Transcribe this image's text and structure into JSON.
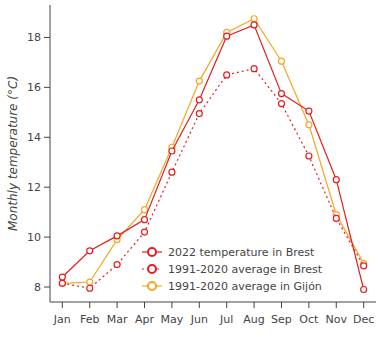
{
  "chart_data": {
    "type": "line",
    "y_label": "Monthly temperature (°C)",
    "categories": [
      "Jan",
      "Feb",
      "Mar",
      "Apr",
      "May",
      "Jun",
      "Jul",
      "Aug",
      "Sep",
      "Oct",
      "Nov",
      "Dec"
    ],
    "series": [
      {
        "name": "2022 temperature in Brest",
        "color": "#e41e1e",
        "marker": "circle",
        "line_style": "solid",
        "values": [
          8.4,
          9.45,
          10.05,
          10.7,
          13.45,
          15.5,
          18.05,
          18.5,
          15.75,
          15.05,
          12.3,
          7.9
        ]
      },
      {
        "name": "1991-2020 average in Brest",
        "color": "#e41e1e",
        "marker": "circle",
        "line_style": "dotted",
        "values": [
          8.15,
          7.95,
          8.9,
          10.2,
          12.6,
          14.95,
          16.5,
          16.75,
          15.35,
          13.25,
          10.75,
          8.85
        ]
      },
      {
        "name": "1991-2020 average in Gijón",
        "color": "#f5a623",
        "marker": "circle",
        "line_style": "solid",
        "values": [
          8.15,
          8.2,
          9.9,
          11.1,
          13.6,
          16.25,
          18.2,
          18.75,
          17.05,
          14.5,
          10.9,
          8.95
        ]
      }
    ],
    "ylim": [
      7.4,
      19.3
    ],
    "yticks": [
      8,
      10,
      12,
      14,
      16,
      18
    ],
    "grid": false,
    "legend": "bottom"
  }
}
